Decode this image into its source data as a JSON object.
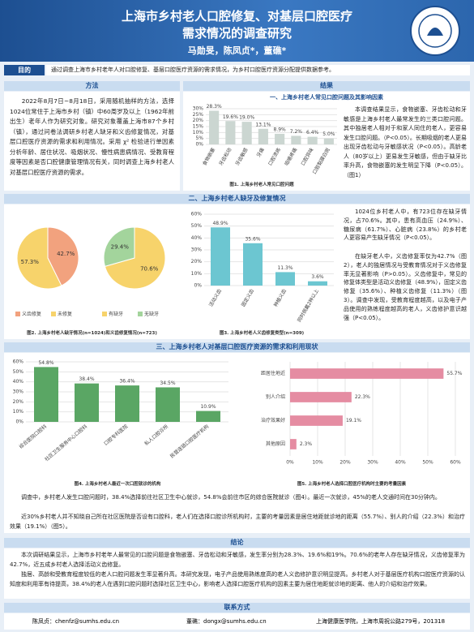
{
  "header": {
    "title": [
      "上海市乡村老人口腔修复、对基层口腔医疗",
      "需求情况的调查研究"
    ],
    "authors": "马勋旻，陈凤贞*，董礁*"
  },
  "objective": {
    "label": "目的",
    "text": "通过调查上海市乡村老年人对口腔修复、基层口腔医疗资源的需求情况，为乡村口腔医疗资源分配提供数据参考。"
  },
  "method": {
    "title": "方法",
    "text": "2022年8月7日~8月18日，采用随机抽样的方法，选择1024位常住于上海市乡村（镇）中60周岁及以上（1962年前出生）老年人作为研究对象。研究对象覆盖上海市87个乡村（镇），通过问卷法调研乡村老人缺牙和义齿修复情况，对基层口腔医疗资源的需求和利用情况。采用 χ² 检验进行单因素分析年龄、居住状况、吸烟状况、慢性病患病情况、受教育程度等因素是否口腔健康管理情况有关，同时调查上海乡村老人对基层口腔医疗资源的需求。"
  },
  "results": {
    "title": "结果",
    "sections": [
      {
        "title": "一、上海乡村老人常见口腔问题及其影响因素",
        "text": [
          "本调查结果显示，食物嵌塞、牙齿松动和牙敏感是上海乡村老人最常发生的三类口腔问题。其中独居老人相对于和家人同住的老人，更容易发生口腔问题。（P<0.05）。长期吸烟的老人更易出现牙齿松动与牙敏感状况（P<0.05）。高龄老人（80岁以上）更易发生牙敏感，但由于缺牙比率升高，食物嵌塞的发生明显下降（P<0.05）。（图1）"
        ]
      },
      {
        "title": "二、上海乡村老人缺牙及修复情况",
        "text": [
          "1024位乡村老人中，有723位存在缺牙情况，占70.6%。其中，患有高血压（24.9%）、糖尿病（61.7%）、心脏病（23.8%）的乡村老人更容易产生缺牙情况（P<0.05）。",
          "在缺牙老人中，义齿修复率仅为42.7%（图2），老人的独居情况与受教育情况对于义齿修复率无显著影响（P>0.05）。义齿修复中，常见的修复体类型是活动义齿修复（48.9%），固定义齿修复（35.6%）、种植义齿修复（11.3%）（图3）。调查中发现，受教育程度越高，以及电子产品使用的熟练程度越高的老人，义齿修护意识越强（P<0.05）。"
        ]
      },
      {
        "title": "三、上海乡村老人对基层口腔医疗资源的需求和利用现状",
        "text": [
          "调查中，乡村老人发生口腔问题时，38.4%选择前往社区卫生中心就诊，54.8%会前往市区的综合医院就诊（图4）。最近一次就诊，45%的老人交通时间在30分钟内。",
          "近30%乡村老人并不知晓自己所在社区医院是否设有口腔科，老人们在选择口腔诊所机构时，主要的考量因素是居住地距就诊地的距离（55.7%）、别人的介绍（22.3%）和治疗效果（19.1%）（图5）。"
        ]
      }
    ]
  },
  "conclusion": {
    "title": "结论",
    "text": [
      "本次调研结果显示，上海市乡村老年人最常见的口腔问题是食物嵌塞、牙齿松动和牙敏感，发生率分别为28.3%、19.6%和19%。70.6%的老年人存在缺牙情况，义齿修复率为42.7%，近五成乡村老人选择活动义齿修复。",
      "独居、高龄和受教育程度较低的老人口腔问题发生率显著升高。本研究发现，电子产品使用熟练度高的老人义齿修护意识明显提高。乡村老人对于基层医疗机构口腔医疗资源的认知度和利用率有待提高，38.4%的老人在遇到口腔问题时选择社区卫生中心，影响老人选择口腔医疗机构的因素主要为居住地距就诊地的距离、他人的介绍和治疗效果。"
    ]
  },
  "contact": {
    "title": "联系方式",
    "items": [
      "陈凤贞：chenfz@sumhs.edu.cn",
      "董礁：dongx@sumhs.edu.cn",
      "上海健康医学院，上海市周祝公路279号，201318"
    ]
  },
  "chart_data": [
    {
      "type": "bar",
      "title": "图1. 上海乡村老人常见口腔问题",
      "color": "#cbd6d1",
      "grid": true,
      "categories": [
        "食物嵌塞",
        "牙齿松动",
        "牙齿敏感",
        "牙痛",
        "口腔溃疡",
        "咀嚼疼痛",
        "口腔异味",
        "口腔黏膜白斑"
      ],
      "values": [
        28.3,
        19.6,
        19.0,
        13.1,
        8.9,
        7.2,
        6.4,
        5.0
      ],
      "value_labels": [
        "28.3%",
        "19.6%",
        "19.0%",
        "13.1%",
        "8.9%",
        "7.2%",
        "6.4%",
        "5.0%"
      ],
      "ylim": [
        0,
        30
      ],
      "yticks": [
        {
          "value": 0,
          "label": "0%"
        },
        {
          "value": 5,
          "label": "5%"
        },
        {
          "value": 10,
          "label": "10%"
        },
        {
          "value": 15,
          "label": "15%"
        },
        {
          "value": 20,
          "label": "20%"
        },
        {
          "value": 25,
          "label": "25%"
        },
        {
          "value": 30,
          "label": "30%"
        }
      ]
    },
    {
      "type": "pie",
      "title": "图2. 上海乡村老人缺牙情况(n=1024)和义齿修复情况(n=723)",
      "categories": [
        "义齿修复",
        "未修复"
      ],
      "values": [
        42.7,
        57.3
      ],
      "value_labels": [
        "42.7%",
        "57.3%"
      ],
      "colors": [
        "#f2a27e",
        "#f7d36b"
      ]
    },
    {
      "type": "pie",
      "categories": [
        "有缺牙",
        "无缺牙"
      ],
      "values": [
        70.6,
        29.4
      ],
      "value_labels": [
        "70.6%",
        "29.4%"
      ],
      "colors": [
        "#f7d36b",
        "#a3d49c"
      ]
    },
    {
      "type": "bar",
      "title": "图3. 上海乡村老人义齿修复类型(n=309)",
      "color": "#6cc6d1",
      "grid": true,
      "categories": [
        "活动义齿",
        "固定义齿",
        "种植义齿",
        "同时佩戴2种以上"
      ],
      "values": [
        48.9,
        35.6,
        11.3,
        3.6
      ],
      "value_labels": [
        "48.9%",
        "35.6%",
        "11.3%",
        "3.6%"
      ],
      "ylim": [
        0,
        60
      ],
      "yticks": [
        {
          "value": 0,
          "label": "0%"
        },
        {
          "value": 10,
          "label": "10%"
        },
        {
          "value": 20,
          "label": "20%"
        },
        {
          "value": 30,
          "label": "30%"
        },
        {
          "value": 40,
          "label": "40%"
        },
        {
          "value": 50,
          "label": "50%"
        },
        {
          "value": 60,
          "label": "60%"
        }
      ]
    },
    {
      "type": "bar",
      "title": "图4. 上海乡村老人最近一次口腔就诊的机构",
      "color": "#5aa664",
      "grid": true,
      "categories": [
        "综合医院口腔科",
        "社区卫生服务中心口腔科",
        "口腔专科医院",
        "私人口腔诊所",
        "民营连锁口腔医疗机构"
      ],
      "values": [
        54.8,
        38.4,
        36.4,
        34.5,
        10.9
      ],
      "value_labels": [
        "54.8%",
        "38.4%",
        "36.4%",
        "34.5%",
        "10.9%"
      ],
      "ylim": [
        0,
        60
      ],
      "yticks": [
        {
          "value": 0,
          "label": "0%"
        },
        {
          "value": 10,
          "label": "10%"
        },
        {
          "value": 20,
          "label": "20%"
        },
        {
          "value": 30,
          "label": "30%"
        },
        {
          "value": 40,
          "label": "40%"
        },
        {
          "value": 50,
          "label": "50%"
        },
        {
          "value": 60,
          "label": "60%"
        }
      ]
    },
    {
      "type": "bar",
      "orientation": "horizontal",
      "title": "图5. 上海乡村老人选择口腔医疗机构时主要的考量因素",
      "color": "#e58ca2",
      "grid": true,
      "categories": [
        "距居住地近",
        "别人介绍",
        "治疗效果好",
        "其他原因"
      ],
      "values": [
        55.7,
        22.3,
        19.1,
        2.3
      ],
      "value_labels": [
        "55.7%",
        "22.3%",
        "19.1%",
        "2.3%"
      ],
      "xlim": [
        0,
        60
      ],
      "xticks": [
        {
          "value": 0,
          "label": "0%"
        },
        {
          "value": 10,
          "label": "10%"
        },
        {
          "value": 20,
          "label": "20%"
        },
        {
          "value": 30,
          "label": "30%"
        },
        {
          "value": 40,
          "label": "40%"
        },
        {
          "value": 50,
          "label": "50%"
        },
        {
          "value": 60,
          "label": "60%"
        }
      ]
    }
  ]
}
